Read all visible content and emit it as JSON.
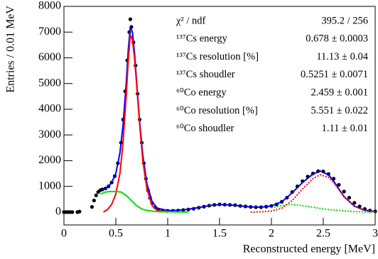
{
  "chart_data": {
    "type": "scatter",
    "x_label": "Reconstructed energy [MeV]",
    "y_label": "Entries / 0.01 MeV",
    "xlim": [
      0,
      3
    ],
    "xticks": [
      0,
      0.5,
      1,
      1.5,
      2,
      2.5,
      3
    ],
    "ylim": [
      -500,
      8000
    ],
    "yticks": [
      0,
      1000,
      2000,
      3000,
      4000,
      5000,
      6000,
      7000,
      8000
    ],
    "series": [
      {
        "style": "points",
        "color": "#000000",
        "x": [
          0,
          0.02,
          0.04,
          0.06,
          0.08,
          0.13,
          0.15,
          0.27,
          0.29,
          0.31,
          0.33,
          0.35,
          0.37,
          0.4,
          0.43,
          0.46,
          0.49,
          0.52,
          0.55,
          0.57,
          0.59,
          0.61,
          0.63,
          0.64,
          0.65,
          0.67,
          0.69,
          0.71,
          0.73,
          0.75,
          0.77,
          0.79,
          0.81,
          0.83,
          0.85,
          0.88,
          0.91,
          0.95,
          1.0,
          1.05,
          1.1,
          1.15,
          1.2,
          1.25,
          1.3,
          1.35,
          1.4,
          1.45,
          1.5,
          1.55,
          1.6,
          1.65,
          1.7,
          1.75,
          1.8,
          1.85,
          1.9,
          1.95,
          2.0,
          2.05,
          2.1,
          2.15,
          2.2,
          2.25,
          2.3,
          2.35,
          2.4,
          2.45,
          2.5,
          2.55,
          2.6,
          2.65,
          2.7,
          2.75,
          2.8,
          2.85,
          2.9,
          2.95,
          3.0
        ],
        "values": [
          0,
          0,
          0,
          0,
          0,
          0,
          20,
          200,
          450,
          650,
          780,
          850,
          880,
          920,
          1000,
          1150,
          1400,
          1900,
          2700,
          3600,
          4700,
          5900,
          7000,
          7500,
          7200,
          6600,
          5700,
          4600,
          3600,
          2700,
          1900,
          1300,
          850,
          550,
          350,
          180,
          100,
          60,
          50,
          50,
          60,
          80,
          100,
          130,
          170,
          210,
          250,
          280,
          300,
          290,
          280,
          270,
          240,
          220,
          200,
          190,
          190,
          210,
          240,
          300,
          400,
          560,
          780,
          1000,
          1200,
          1380,
          1500,
          1590,
          1580,
          1480,
          1300,
          1060,
          800,
          560,
          360,
          220,
          120,
          60,
          30
        ]
      },
      {
        "style": "line",
        "color": "#0000ff",
        "x": [
          0.38,
          0.42,
          0.46,
          0.5,
          0.54,
          0.57,
          0.6,
          0.62,
          0.64,
          0.66,
          0.68,
          0.7,
          0.73,
          0.76,
          0.8,
          0.85,
          0.9,
          1.0,
          1.1,
          1.2,
          1.3,
          1.4,
          1.5,
          1.6,
          1.7,
          1.8,
          1.9,
          2.0,
          2.1,
          2.2,
          2.3,
          2.4,
          2.47,
          2.55,
          2.6,
          2.7,
          2.8,
          2.9,
          3.0
        ],
        "values": [
          880,
          960,
          1150,
          1500,
          2300,
          3400,
          5000,
          6300,
          7200,
          7000,
          6200,
          5100,
          3500,
          2200,
          1100,
          400,
          150,
          60,
          70,
          110,
          180,
          250,
          290,
          280,
          240,
          200,
          190,
          240,
          400,
          750,
          1150,
          1480,
          1600,
          1450,
          1200,
          600,
          230,
          70,
          20
        ]
      },
      {
        "style": "line",
        "color": "#ff0000",
        "x": [
          0.38,
          0.42,
          0.46,
          0.5,
          0.54,
          0.57,
          0.6,
          0.62,
          0.64,
          0.66,
          0.68,
          0.7,
          0.73,
          0.76,
          0.8,
          0.85,
          0.9,
          1.0
        ],
        "values": [
          0,
          100,
          300,
          700,
          1500,
          2700,
          4500,
          5900,
          6900,
          6700,
          6000,
          5000,
          3400,
          2000,
          900,
          250,
          60,
          0
        ]
      },
      {
        "style": "line",
        "color": "#00e000",
        "x": [
          0.35,
          0.4,
          0.45,
          0.5,
          0.55,
          0.6,
          0.65,
          0.7,
          0.75,
          0.8,
          0.9,
          1.0,
          1.1,
          1.2
        ],
        "values": [
          700,
          780,
          800,
          800,
          780,
          650,
          450,
          250,
          120,
          60,
          20,
          10,
          5,
          0
        ]
      },
      {
        "style": "dotted",
        "color": "#ff0000",
        "x": [
          1.8,
          1.9,
          2.0,
          2.1,
          2.2,
          2.3,
          2.4,
          2.47,
          2.55,
          2.6,
          2.7,
          2.8,
          2.9,
          3.0
        ],
        "values": [
          0,
          10,
          40,
          150,
          450,
          900,
          1300,
          1450,
          1350,
          1150,
          600,
          230,
          60,
          10
        ]
      },
      {
        "style": "dotted",
        "color": "#00e000",
        "x": [
          2.0,
          2.1,
          2.2,
          2.3,
          2.4,
          2.5,
          2.6,
          2.7,
          2.8,
          2.9,
          3.0
        ],
        "values": [
          170,
          250,
          300,
          250,
          190,
          120,
          80,
          50,
          20,
          5,
          0
        ]
      }
    ],
    "stats": [
      {
        "label": "χ² / ndf",
        "value": "395.2 / 256"
      },
      {
        "label": "¹³⁷Cs energy",
        "value": "0.678 ± 0.0003"
      },
      {
        "label": "¹³⁷Cs resolution [%]",
        "value": "11.13 ± 0.04"
      },
      {
        "label": "¹³⁷Cs shoudler",
        "value": "0.5251 ± 0.0071"
      },
      {
        "label": "⁶⁰Co energy",
        "value": "2.459 ± 0.001"
      },
      {
        "label": "⁶⁰Co resolution [%]",
        "value": "5.551 ± 0.022"
      },
      {
        "label": "⁶⁰Co shoudler",
        "value": "1.11 ± 0.01"
      }
    ]
  }
}
